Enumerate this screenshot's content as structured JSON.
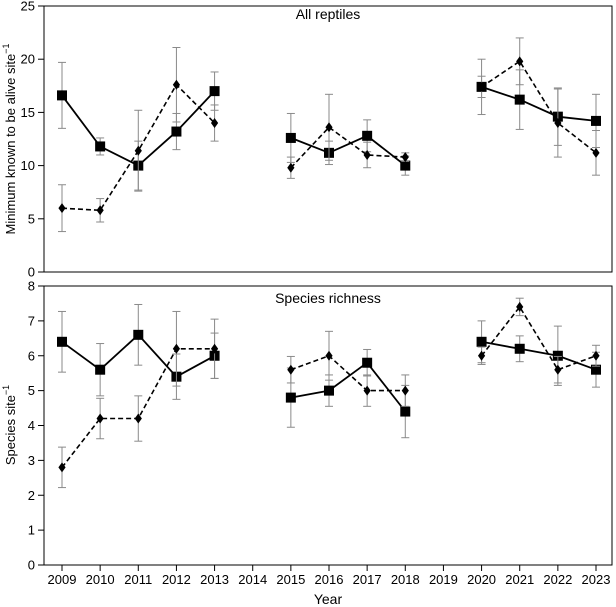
{
  "xlabel": "Year",
  "x_ticks": [
    "2009",
    "2010",
    "2011",
    "2012",
    "2013",
    "2014",
    "2015",
    "2016",
    "2017",
    "2018",
    "2019",
    "2020",
    "2021",
    "2022",
    "2023"
  ],
  "chart_data": [
    {
      "type": "line",
      "title": "All reptiles",
      "ylabel_main": "Minimum known to be alive site",
      "ylabel_sup": "−1",
      "xlabel": "",
      "ylim": [
        0,
        25
      ],
      "y_ticks": [
        0,
        5,
        10,
        15,
        20,
        25
      ],
      "grid": false,
      "series": [
        {
          "marker": "square",
          "line_style": "solid",
          "segments": [
            {
              "x": [
                2009,
                2010,
                2011,
                2012,
                2013
              ],
              "y": [
                16.6,
                11.8,
                10.0,
                13.2,
                17.0
              ],
              "err": [
                3.1,
                0.8,
                2.3,
                1.7,
                1.8
              ]
            },
            {
              "x": [
                2015,
                2016,
                2017,
                2018
              ],
              "y": [
                12.6,
                11.2,
                12.8,
                10.0
              ],
              "err": [
                2.3,
                1.1,
                1.5,
                0.9
              ]
            },
            {
              "x": [
                2020,
                2021,
                2022,
                2023
              ],
              "y": [
                17.4,
                16.2,
                14.6,
                14.2
              ],
              "err": [
                2.6,
                2.8,
                2.7,
                2.5
              ]
            }
          ]
        },
        {
          "marker": "diamond",
          "line_style": "dashed",
          "segments": [
            {
              "x": [
                2009,
                2010,
                2011,
                2012,
                2013
              ],
              "y": [
                6.0,
                5.8,
                11.4,
                17.6,
                14.0
              ],
              "err": [
                2.2,
                1.1,
                3.8,
                3.5,
                1.7
              ]
            },
            {
              "x": [
                2015,
                2016,
                2017,
                2018
              ],
              "y": [
                9.8,
                13.6,
                11.0,
                10.8
              ],
              "err": [
                1.0,
                3.1,
                1.2,
                0.4
              ]
            },
            {
              "x": [
                2020,
                2021,
                2022,
                2023
              ],
              "y": [
                17.4,
                19.8,
                14.0,
                11.2
              ],
              "err": [
                1.0,
                2.2,
                3.2,
                2.1
              ]
            }
          ]
        }
      ]
    },
    {
      "type": "line",
      "title": "Species richness",
      "ylabel_main": "Species site",
      "ylabel_sup": "−1",
      "xlabel": "Year",
      "ylim": [
        0,
        8
      ],
      "y_ticks": [
        0,
        1,
        2,
        3,
        4,
        5,
        6,
        7,
        8
      ],
      "grid": false,
      "series": [
        {
          "marker": "square",
          "line_style": "solid",
          "segments": [
            {
              "x": [
                2009,
                2010,
                2011,
                2012,
                2013
              ],
              "y": [
                6.4,
                5.6,
                6.6,
                5.4,
                6.0
              ],
              "err": [
                0.87,
                0.75,
                0.87,
                0.65,
                0.65
              ]
            },
            {
              "x": [
                2015,
                2016,
                2017,
                2018
              ],
              "y": [
                4.8,
                5.0,
                5.8,
                4.4
              ],
              "err": [
                0.85,
                0.45,
                0.38,
                0.75
              ]
            },
            {
              "x": [
                2020,
                2021,
                2022,
                2023
              ],
              "y": [
                6.4,
                6.2,
                6.0,
                5.6
              ],
              "err": [
                0.6,
                0.37,
                0.85,
                0.5
              ]
            }
          ]
        },
        {
          "marker": "diamond",
          "line_style": "dashed",
          "segments": [
            {
              "x": [
                2009,
                2010,
                2011,
                2012,
                2013
              ],
              "y": [
                2.8,
                4.2,
                4.2,
                6.2,
                6.2
              ],
              "err": [
                0.58,
                0.58,
                0.65,
                1.07,
                0.85
              ]
            },
            {
              "x": [
                2015,
                2016,
                2017,
                2018
              ],
              "y": [
                5.6,
                6.0,
                5.0,
                5.0
              ],
              "err": [
                0.38,
                0.7,
                0.45,
                0.45
              ]
            },
            {
              "x": [
                2020,
                2021,
                2022,
                2023
              ],
              "y": [
                6.0,
                7.4,
                5.6,
                6.0
              ],
              "err": [
                0.25,
                0.25,
                0.38,
                0.3
              ]
            }
          ]
        }
      ]
    }
  ]
}
